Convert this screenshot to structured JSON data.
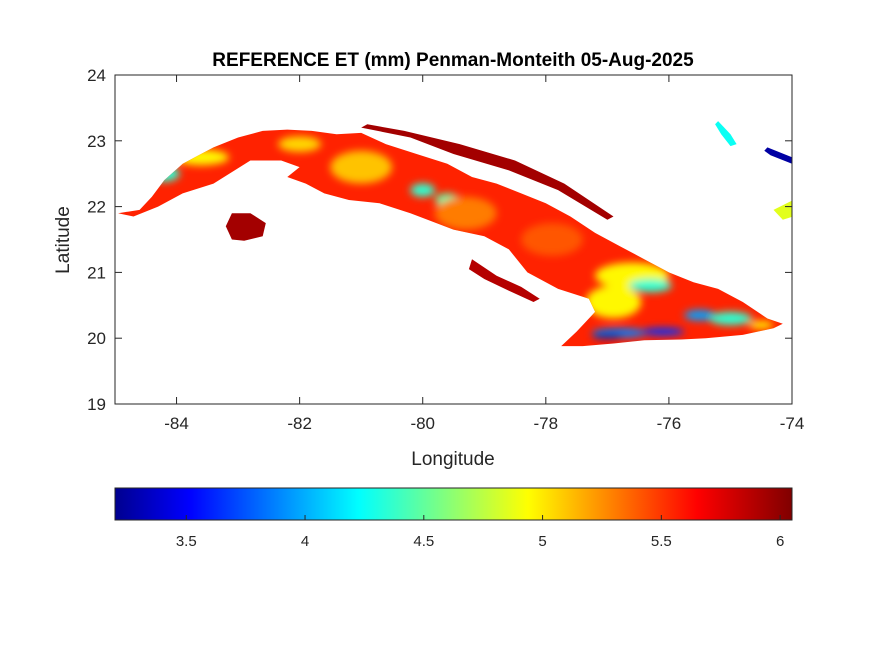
{
  "figure": {
    "title": "REFERENCE ET (mm) Penman-Monteith 05-Aug-2025",
    "xlabel": "Longitude",
    "ylabel": "Latitude"
  },
  "chart_data": {
    "type": "heatmap",
    "title": "REFERENCE ET (mm) Penman-Monteith 05-Aug-2025",
    "xlabel": "Longitude",
    "ylabel": "Latitude",
    "xlim": [
      -85,
      -74
    ],
    "ylim": [
      19,
      24
    ],
    "xticks": [
      -84,
      -82,
      -80,
      -78,
      -76,
      -74
    ],
    "yticks": [
      19,
      20,
      21,
      22,
      23,
      24
    ],
    "xtick_labels": [
      "-84",
      "-82",
      "-80",
      "-78",
      "-76",
      "-74"
    ],
    "ytick_labels": [
      "19",
      "20",
      "21",
      "22",
      "23",
      "24"
    ],
    "grid": false,
    "colormap": "jet",
    "colorbar": {
      "orientation": "horizontal",
      "placement": "bottom",
      "clim": [
        3.2,
        6.05
      ],
      "ticks": [
        3.5,
        4,
        4.5,
        5,
        5.5,
        6
      ],
      "tick_labels": [
        "3.5",
        "4",
        "4.5",
        "5",
        "5.5",
        "6"
      ]
    },
    "colors": {
      "dark_red": "#8b0000",
      "red": "#e01010",
      "orange_red": "#f04a10",
      "orange": "#ff8c00",
      "yellow": "#ffe600",
      "cyan": "#40e8d0",
      "blue": "#1a5cff",
      "navy": "#00008f"
    },
    "regions": [
      {
        "name": "Cuba main island",
        "lonlat": [
          [
            -84.95,
            21.9
          ],
          [
            -84.6,
            21.95
          ],
          [
            -84.4,
            22.15
          ],
          [
            -84.2,
            22.4
          ],
          [
            -83.9,
            22.65
          ],
          [
            -83.4,
            22.9
          ],
          [
            -83.0,
            23.05
          ],
          [
            -82.6,
            23.15
          ],
          [
            -82.2,
            23.17
          ],
          [
            -81.8,
            23.15
          ],
          [
            -81.4,
            23.1
          ],
          [
            -81.0,
            23.12
          ],
          [
            -80.6,
            22.95
          ],
          [
            -80.1,
            22.8
          ],
          [
            -79.6,
            22.65
          ],
          [
            -79.2,
            22.45
          ],
          [
            -78.8,
            22.35
          ],
          [
            -78.4,
            22.2
          ],
          [
            -78.0,
            22.05
          ],
          [
            -77.6,
            21.85
          ],
          [
            -77.2,
            21.6
          ],
          [
            -76.8,
            21.4
          ],
          [
            -76.4,
            21.2
          ],
          [
            -76.0,
            21.0
          ],
          [
            -75.6,
            20.85
          ],
          [
            -75.2,
            20.75
          ],
          [
            -74.8,
            20.55
          ],
          [
            -74.4,
            20.3
          ],
          [
            -74.15,
            20.22
          ],
          [
            -74.3,
            20.15
          ],
          [
            -74.8,
            20.05
          ],
          [
            -75.4,
            20.0
          ],
          [
            -75.8,
            19.98
          ],
          [
            -76.4,
            19.97
          ],
          [
            -76.9,
            19.92
          ],
          [
            -77.4,
            19.88
          ],
          [
            -77.75,
            19.88
          ],
          [
            -77.5,
            20.1
          ],
          [
            -77.2,
            20.4
          ],
          [
            -77.3,
            20.6
          ],
          [
            -77.8,
            20.75
          ],
          [
            -78.3,
            21.0
          ],
          [
            -78.6,
            21.35
          ],
          [
            -79.0,
            21.55
          ],
          [
            -79.5,
            21.65
          ],
          [
            -80.2,
            21.9
          ],
          [
            -80.7,
            22.05
          ],
          [
            -81.2,
            22.1
          ],
          [
            -81.6,
            22.2
          ],
          [
            -81.9,
            22.35
          ],
          [
            -82.2,
            22.45
          ],
          [
            -82.0,
            22.6
          ],
          [
            -82.3,
            22.7
          ],
          [
            -82.8,
            22.7
          ],
          [
            -83.4,
            22.35
          ],
          [
            -83.9,
            22.2
          ],
          [
            -84.3,
            22.0
          ],
          [
            -84.7,
            21.85
          ]
        ],
        "value": 5.6
      },
      {
        "name": "Isla de la Juventud",
        "lonlat": [
          [
            -83.1,
            21.9
          ],
          [
            -82.8,
            21.9
          ],
          [
            -82.55,
            21.75
          ],
          [
            -82.6,
            21.55
          ],
          [
            -82.9,
            21.48
          ],
          [
            -83.1,
            21.5
          ],
          [
            -83.2,
            21.7
          ]
        ],
        "value": 5.95
      },
      {
        "name": "Jardines de la Reina",
        "lonlat": [
          [
            -79.2,
            21.2
          ],
          [
            -78.8,
            20.95
          ],
          [
            -78.4,
            20.78
          ],
          [
            -78.1,
            20.6
          ],
          [
            -78.2,
            20.55
          ],
          [
            -78.6,
            20.72
          ],
          [
            -79.0,
            20.9
          ],
          [
            -79.25,
            21.05
          ]
        ],
        "value": 5.9
      },
      {
        "name": "Cayo norte",
        "lonlat": [
          [
            -81.0,
            23.2
          ],
          [
            -80.2,
            23.05
          ],
          [
            -79.5,
            22.8
          ],
          [
            -78.6,
            22.55
          ],
          [
            -77.8,
            22.25
          ],
          [
            -77.0,
            21.8
          ],
          [
            -76.9,
            21.85
          ],
          [
            -77.7,
            22.35
          ],
          [
            -78.5,
            22.7
          ],
          [
            -79.4,
            22.95
          ],
          [
            -80.3,
            23.15
          ],
          [
            -80.9,
            23.25
          ]
        ],
        "value": 5.95
      },
      {
        "name": "Hispaniola tip",
        "lonlat": [
          [
            -73.98,
            22.1
          ],
          [
            -74.3,
            21.95
          ],
          [
            -74.15,
            21.8
          ],
          [
            -73.98,
            21.85
          ]
        ],
        "value": 4.9
      },
      {
        "name": "Islet northeast A",
        "lonlat": [
          [
            -75.2,
            23.3
          ],
          [
            -75.0,
            23.1
          ],
          [
            -74.9,
            22.95
          ],
          [
            -75.0,
            22.92
          ],
          [
            -75.15,
            23.1
          ],
          [
            -75.25,
            23.25
          ]
        ],
        "value": 4.3
      },
      {
        "name": "Islet northeast B",
        "lonlat": [
          [
            -74.4,
            22.9
          ],
          [
            -74.0,
            22.75
          ],
          [
            -74.0,
            22.65
          ],
          [
            -74.35,
            22.78
          ],
          [
            -74.45,
            22.85
          ]
        ],
        "value": 3.3
      }
    ],
    "patches": [
      {
        "name": "Pinar cyan spot",
        "center": [
          -84.2,
          22.5
        ],
        "radius": [
          0.25,
          0.12
        ],
        "value": 4.4
      },
      {
        "name": "Pinar yellow band",
        "center": [
          -83.6,
          22.75
        ],
        "radius": [
          0.45,
          0.12
        ],
        "value": 5.0
      },
      {
        "name": "Havana yellow",
        "center": [
          -82.0,
          22.95
        ],
        "radius": [
          0.35,
          0.12
        ],
        "value": 5.1
      },
      {
        "name": "Matanzas yellow",
        "center": [
          -81.0,
          22.6
        ],
        "radius": [
          0.5,
          0.25
        ],
        "value": 5.15
      },
      {
        "name": "Central cyan 1",
        "center": [
          -80.0,
          22.25
        ],
        "radius": [
          0.2,
          0.1
        ],
        "value": 4.4
      },
      {
        "name": "Central cyan 2",
        "center": [
          -79.6,
          22.1
        ],
        "radius": [
          0.2,
          0.1
        ],
        "value": 4.5
      },
      {
        "name": "Central orange",
        "center": [
          -79.3,
          21.9
        ],
        "radius": [
          0.5,
          0.25
        ],
        "value": 5.35
      },
      {
        "name": "Camaguey orange",
        "center": [
          -77.9,
          21.5
        ],
        "radius": [
          0.5,
          0.25
        ],
        "value": 5.45
      },
      {
        "name": "Holguin yellow",
        "center": [
          -76.6,
          20.95
        ],
        "radius": [
          0.6,
          0.2
        ],
        "value": 5.0
      },
      {
        "name": "Holguin cyan",
        "center": [
          -76.3,
          20.8
        ],
        "radius": [
          0.35,
          0.1
        ],
        "value": 4.4
      },
      {
        "name": "Granma yellow",
        "center": [
          -76.9,
          20.55
        ],
        "radius": [
          0.45,
          0.25
        ],
        "value": 5.0
      },
      {
        "name": "Sierra blue 1",
        "center": [
          -76.8,
          20.08
        ],
        "radius": [
          0.45,
          0.07
        ],
        "value": 3.9
      },
      {
        "name": "Sierra blue 2",
        "center": [
          -76.1,
          20.1
        ],
        "radius": [
          0.35,
          0.06
        ],
        "value": 3.7
      },
      {
        "name": "Sierra navy",
        "center": [
          -77.0,
          20.03
        ],
        "radius": [
          0.25,
          0.04
        ],
        "value": 3.3
      },
      {
        "name": "Guantanamo blue",
        "center": [
          -75.5,
          20.35
        ],
        "radius": [
          0.25,
          0.08
        ],
        "value": 4.0
      },
      {
        "name": "Guantanamo cyan",
        "center": [
          -75.0,
          20.3
        ],
        "radius": [
          0.35,
          0.1
        ],
        "value": 4.4
      },
      {
        "name": "East coast yellow",
        "center": [
          -74.5,
          20.2
        ],
        "radius": [
          0.2,
          0.06
        ],
        "value": 5.0
      }
    ]
  }
}
